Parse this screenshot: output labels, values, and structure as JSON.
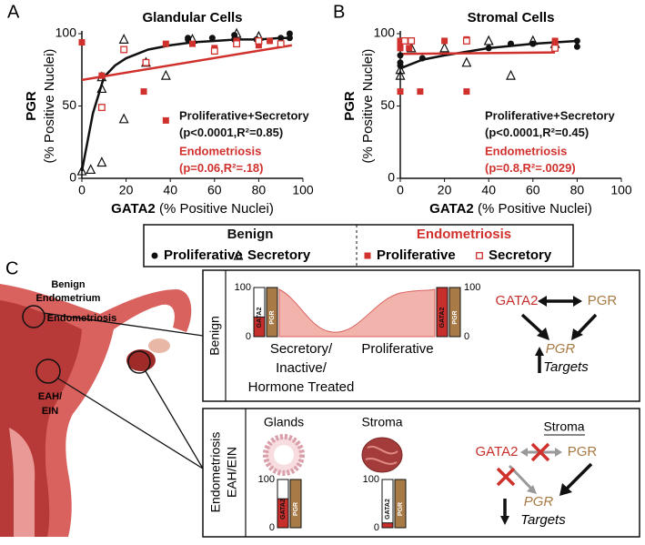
{
  "chart_data": [
    {
      "type": "scatter",
      "panel_label": "A",
      "title": "Glandular Cells",
      "xlabel": "GATA2",
      "xlabel_unit": "(% Positive Nuclei)",
      "ylabel": "PGR",
      "ylabel_unit": "(% Positive Nuclei)",
      "xlim": [
        0,
        100
      ],
      "ylim": [
        0,
        100
      ],
      "xticks": [
        0,
        20,
        40,
        60,
        80,
        100
      ],
      "yticks": [
        0,
        50,
        100
      ],
      "series": [
        {
          "name": "Proliferative",
          "color": "#111111",
          "marker": "circle",
          "x": [
            48,
            48,
            59,
            69,
            69,
            79,
            90,
            94,
            94
          ],
          "values": [
            97,
            96,
            97,
            99,
            96,
            96,
            97,
            100,
            97
          ]
        },
        {
          "name": "Secretory",
          "color": "#111111",
          "marker": "triangle-open",
          "x": [
            0,
            4,
            9,
            9,
            9,
            19,
            19,
            29,
            38,
            50,
            70,
            80
          ],
          "values": [
            5,
            6,
            11,
            62,
            70,
            96,
            41,
            80,
            71,
            96,
            100,
            98
          ]
        },
        {
          "name": "Proliferative",
          "color": "#d0312d",
          "marker": "square",
          "x": [
            0,
            9,
            28,
            38,
            38,
            50,
            60,
            70,
            80,
            85
          ],
          "values": [
            94,
            71,
            60,
            40,
            93,
            93,
            90,
            95,
            92,
            95
          ]
        },
        {
          "name": "Secretory",
          "color": "#d0312d",
          "marker": "square-open",
          "x": [
            9,
            19,
            29,
            60,
            70,
            80,
            90
          ],
          "values": [
            49,
            89,
            80,
            88,
            93,
            95,
            93
          ]
        }
      ],
      "fits": [
        {
          "color": "#111111",
          "x": [
            0,
            5,
            10,
            15,
            20,
            30,
            40,
            50,
            60,
            70,
            80,
            90,
            95
          ],
          "values": [
            5,
            45,
            70,
            78,
            83,
            89,
            92,
            94,
            95,
            96,
            96,
            97,
            97
          ]
        },
        {
          "color": "#d0312d",
          "x": [
            0,
            95
          ],
          "values": [
            68,
            92
          ]
        }
      ],
      "annotations": [
        {
          "text": "Proliferative+Secretory",
          "color": "#111111"
        },
        {
          "text": "(p<0.0001,R²=0.85)",
          "color": "#111111"
        },
        {
          "text": "Endometriosis",
          "color": "#d0312d"
        },
        {
          "text": "(p=0.06,R²=.18)",
          "color": "#d0312d"
        }
      ]
    },
    {
      "type": "scatter",
      "panel_label": "B",
      "title": "Stromal Cells",
      "xlabel": "GATA2",
      "xlabel_unit": "(% Positive Nuclei)",
      "ylabel": "PGR",
      "ylabel_unit": "(% Positive Nuclei)",
      "xlim": [
        0,
        100
      ],
      "ylim": [
        0,
        100
      ],
      "xticks": [
        0,
        20,
        40,
        60,
        80,
        100
      ],
      "yticks": [
        0,
        50,
        100
      ],
      "series": [
        {
          "color": "#111111",
          "marker": "circle",
          "x": [
            0,
            0,
            0,
            10,
            40,
            50,
            60,
            70,
            80,
            80
          ],
          "values": [
            80,
            78,
            85,
            83,
            90,
            93,
            93,
            95,
            95,
            91
          ]
        },
        {
          "color": "#111111",
          "marker": "triangle-open",
          "x": [
            0,
            0,
            5,
            20,
            30,
            40,
            50,
            60,
            70
          ],
          "values": [
            71,
            75,
            90,
            90,
            80,
            95,
            71,
            95,
            93
          ]
        },
        {
          "color": "#d0312d",
          "marker": "square",
          "x": [
            0,
            0,
            0,
            0,
            4,
            9,
            20,
            30,
            30,
            70,
            70
          ],
          "values": [
            95,
            92,
            60,
            90,
            90,
            60,
            95,
            96,
            60,
            92,
            95
          ]
        },
        {
          "color": "#d0312d",
          "marker": "square-open",
          "x": [
            2,
            5,
            30,
            70
          ],
          "values": [
            95,
            95,
            95,
            90
          ]
        }
      ],
      "fits": [
        {
          "color": "#111111",
          "x": [
            0,
            10,
            20,
            40,
            60,
            80
          ],
          "values": [
            76,
            82,
            85,
            90,
            93,
            95
          ]
        },
        {
          "color": "#d0312d",
          "x": [
            0,
            70
          ],
          "values": [
            86,
            87
          ]
        }
      ],
      "annotations": [
        {
          "text": "Proliferative+Secretory",
          "color": "#111111"
        },
        {
          "text": "(p<0.0001,R²=0.45)",
          "color": "#111111"
        },
        {
          "text": "Endometriosis",
          "color": "#d0312d"
        },
        {
          "text": "(p=0.8,R²=.0029)",
          "color": "#d0312d"
        }
      ]
    }
  ],
  "legend": {
    "groups": [
      {
        "title": "Benign",
        "color": "#111111"
      },
      {
        "title": "Endometriosis",
        "color": "#d0312d"
      }
    ]
  },
  "panel_c": {
    "label": "C",
    "uterus_labels": [
      "Benign",
      "Endometrium",
      "Endometriosis",
      "EAH/",
      "EIN"
    ],
    "mini_axis": [
      0,
      100
    ],
    "mini_bar_labels": [
      "GATA2",
      "PGR"
    ],
    "benign": {
      "side_label": "Benign",
      "stage_labels": [
        "Secretory/",
        "Inactive/",
        "Hormone Treated",
        "Proliferative"
      ],
      "bars": [
        {
          "values": [
            40,
            100
          ]
        },
        {
          "values": [
            100,
            100
          ]
        }
      ],
      "network": [
        "GATA2",
        "PGR",
        "PGR",
        "Targets"
      ]
    },
    "endo": {
      "side_label": [
        "Endometriosis",
        "EAH/EIN"
      ],
      "tissue_labels": [
        "Glands",
        "Stroma"
      ],
      "bars": [
        {
          "values": [
            60,
            100
          ]
        },
        {
          "values": [
            10,
            100
          ]
        }
      ],
      "network": [
        "Stroma",
        "GATA2",
        "PGR",
        "PGR",
        "Targets"
      ]
    }
  }
}
